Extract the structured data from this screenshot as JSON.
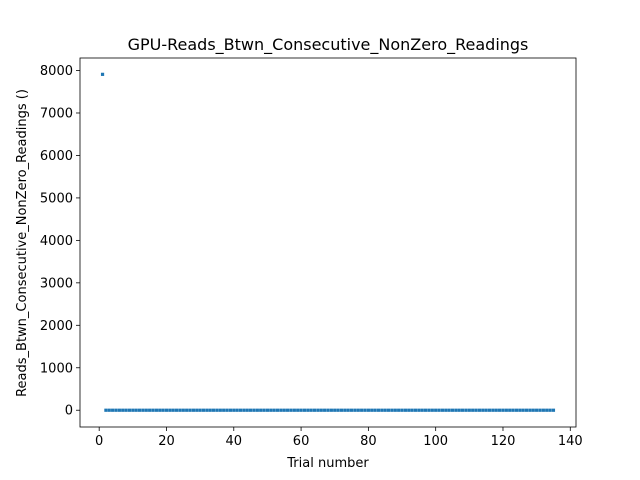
{
  "chart_data": {
    "type": "scatter",
    "title": "GPU-Reads_Btwn_Consecutive_NonZero_Readings",
    "xlabel": "Trial number",
    "ylabel": "Reads_Btwn_Consecutive_NonZero_Readings ()",
    "xlim": [
      -5.7,
      141.7
    ],
    "ylim": [
      -395,
      8295
    ],
    "xticks": [
      0,
      20,
      40,
      60,
      80,
      100,
      120,
      140
    ],
    "yticks": [
      0,
      1000,
      2000,
      3000,
      4000,
      5000,
      6000,
      7000,
      8000
    ],
    "grid": false,
    "marker_color": "#1f77b4",
    "series": [
      {
        "points": [
          [
            1,
            7910
          ],
          [
            2,
            0
          ],
          [
            3,
            0
          ],
          [
            4,
            0
          ],
          [
            5,
            0
          ],
          [
            6,
            0
          ],
          [
            7,
            0
          ],
          [
            8,
            0
          ],
          [
            9,
            0
          ],
          [
            10,
            0
          ],
          [
            11,
            0
          ],
          [
            12,
            0
          ],
          [
            13,
            0
          ],
          [
            14,
            0
          ],
          [
            15,
            0
          ],
          [
            16,
            0
          ],
          [
            17,
            0
          ],
          [
            18,
            0
          ],
          [
            19,
            0
          ],
          [
            20,
            0
          ],
          [
            21,
            0
          ],
          [
            22,
            0
          ],
          [
            23,
            0
          ],
          [
            24,
            0
          ],
          [
            25,
            0
          ],
          [
            26,
            0
          ],
          [
            27,
            0
          ],
          [
            28,
            0
          ],
          [
            29,
            0
          ],
          [
            30,
            0
          ],
          [
            31,
            0
          ],
          [
            32,
            0
          ],
          [
            33,
            0
          ],
          [
            34,
            0
          ],
          [
            35,
            0
          ],
          [
            36,
            0
          ],
          [
            37,
            0
          ],
          [
            38,
            0
          ],
          [
            39,
            0
          ],
          [
            40,
            0
          ],
          [
            41,
            0
          ],
          [
            42,
            0
          ],
          [
            43,
            0
          ],
          [
            44,
            0
          ],
          [
            45,
            0
          ],
          [
            46,
            0
          ],
          [
            47,
            0
          ],
          [
            48,
            0
          ],
          [
            49,
            0
          ],
          [
            50,
            0
          ],
          [
            51,
            0
          ],
          [
            52,
            0
          ],
          [
            53,
            0
          ],
          [
            54,
            0
          ],
          [
            55,
            0
          ],
          [
            56,
            0
          ],
          [
            57,
            0
          ],
          [
            58,
            0
          ],
          [
            59,
            0
          ],
          [
            60,
            0
          ],
          [
            61,
            0
          ],
          [
            62,
            0
          ],
          [
            63,
            0
          ],
          [
            64,
            0
          ],
          [
            65,
            0
          ],
          [
            66,
            0
          ],
          [
            67,
            0
          ],
          [
            68,
            0
          ],
          [
            69,
            0
          ],
          [
            70,
            0
          ],
          [
            71,
            0
          ],
          [
            72,
            0
          ],
          [
            73,
            0
          ],
          [
            74,
            0
          ],
          [
            75,
            0
          ],
          [
            76,
            0
          ],
          [
            77,
            0
          ],
          [
            78,
            0
          ],
          [
            79,
            0
          ],
          [
            80,
            0
          ],
          [
            81,
            0
          ],
          [
            82,
            0
          ],
          [
            83,
            0
          ],
          [
            84,
            0
          ],
          [
            85,
            0
          ],
          [
            86,
            0
          ],
          [
            87,
            0
          ],
          [
            88,
            0
          ],
          [
            89,
            0
          ],
          [
            90,
            0
          ],
          [
            91,
            0
          ],
          [
            92,
            0
          ],
          [
            93,
            0
          ],
          [
            94,
            0
          ],
          [
            95,
            0
          ],
          [
            96,
            0
          ],
          [
            97,
            0
          ],
          [
            98,
            0
          ],
          [
            99,
            0
          ],
          [
            100,
            0
          ],
          [
            101,
            0
          ],
          [
            102,
            0
          ],
          [
            103,
            0
          ],
          [
            104,
            0
          ],
          [
            105,
            0
          ],
          [
            106,
            0
          ],
          [
            107,
            0
          ],
          [
            108,
            0
          ],
          [
            109,
            0
          ],
          [
            110,
            0
          ],
          [
            111,
            0
          ],
          [
            112,
            0
          ],
          [
            113,
            0
          ],
          [
            114,
            0
          ],
          [
            115,
            0
          ],
          [
            116,
            0
          ],
          [
            117,
            0
          ],
          [
            118,
            0
          ],
          [
            119,
            0
          ],
          [
            120,
            0
          ],
          [
            121,
            0
          ],
          [
            122,
            0
          ],
          [
            123,
            0
          ],
          [
            124,
            0
          ],
          [
            125,
            0
          ],
          [
            126,
            0
          ],
          [
            127,
            0
          ],
          [
            128,
            0
          ],
          [
            129,
            0
          ],
          [
            130,
            0
          ],
          [
            131,
            0
          ],
          [
            132,
            0
          ],
          [
            133,
            0
          ],
          [
            134,
            0
          ],
          [
            135,
            0
          ]
        ]
      }
    ]
  }
}
